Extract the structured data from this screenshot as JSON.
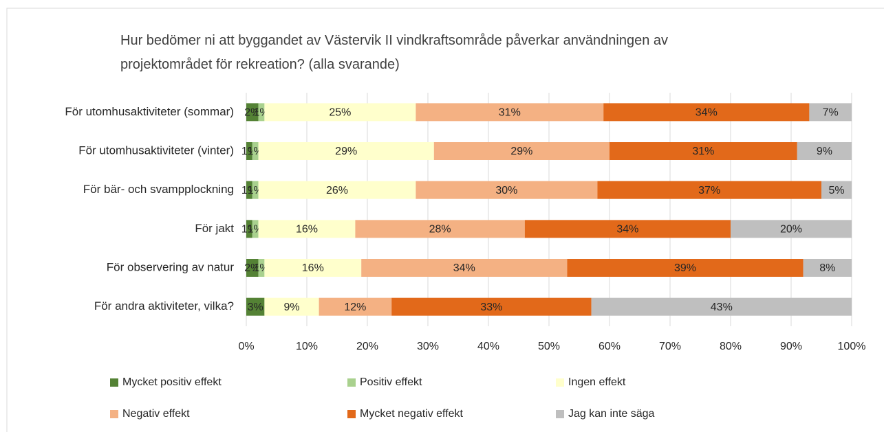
{
  "chart_data": {
    "type": "stacked_barh",
    "title": "Hur bedömer ni att byggandet av Västervik II vindkraftsområde påverkar användningen av projektområdet för rekreation? (alla svarande)",
    "categories": [
      "För utomhusaktiviteter (sommar)",
      "För utomhusaktiviteter (vinter)",
      "För bär- och svampplockning",
      "För jakt",
      "För observering av natur",
      "För andra aktiviteter, vilka?"
    ],
    "series": [
      {
        "name": "Mycket positiv effekt",
        "color": "#548235",
        "values": [
          2,
          1,
          1,
          1,
          2,
          3
        ],
        "value_labels": [
          "2%",
          "1%",
          "1%",
          "1%",
          "2%",
          "3%"
        ]
      },
      {
        "name": "Positiv effekt",
        "color": "#a9d18e",
        "values": [
          1,
          1,
          1,
          1,
          1,
          0
        ],
        "value_labels": [
          "1%",
          "1%",
          "1%",
          "1%",
          "1%",
          null
        ]
      },
      {
        "name": "Ingen effekt",
        "color": "#ffffcc",
        "values": [
          25,
          29,
          26,
          16,
          16,
          9
        ],
        "value_labels": [
          "25%",
          "29%",
          "26%",
          "16%",
          "16%",
          "9%"
        ]
      },
      {
        "name": "Negativ effekt",
        "color": "#f4b183",
        "values": [
          31,
          29,
          30,
          28,
          34,
          12
        ],
        "value_labels": [
          "31%",
          "29%",
          "30%",
          "28%",
          "34%",
          "12%"
        ]
      },
      {
        "name": "Mycket negativ effekt",
        "color": "#e2691a",
        "values": [
          34,
          31,
          37,
          34,
          39,
          33
        ],
        "value_labels": [
          "34%",
          "31%",
          "37%",
          "34%",
          "39%",
          "33%"
        ]
      },
      {
        "name": "Jag kan inte säga",
        "color": "#bfbfbf",
        "values": [
          7,
          9,
          5,
          20,
          8,
          43
        ],
        "value_labels": [
          "7%",
          "9%",
          "5%",
          "20%",
          "8%",
          "43%"
        ]
      }
    ],
    "xlim": [
      0,
      100
    ],
    "xticks": [
      {
        "value": 0,
        "label": "0%"
      },
      {
        "value": 10,
        "label": "10%"
      },
      {
        "value": 20,
        "label": "20%"
      },
      {
        "value": 30,
        "label": "30%"
      },
      {
        "value": 40,
        "label": "40%"
      },
      {
        "value": 50,
        "label": "50%"
      },
      {
        "value": 60,
        "label": "60%"
      },
      {
        "value": 70,
        "label": "70%"
      },
      {
        "value": 80,
        "label": "80%"
      },
      {
        "value": 90,
        "label": "90%"
      },
      {
        "value": 100,
        "label": "100%"
      }
    ],
    "grid": true,
    "legend": "bottom"
  }
}
